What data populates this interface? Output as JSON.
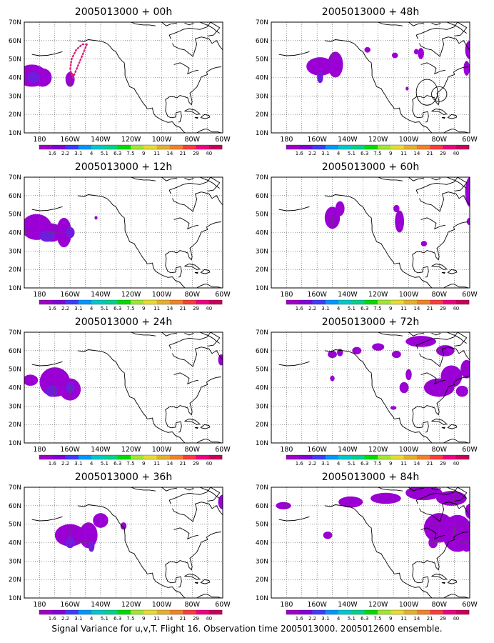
{
  "panels": [
    {
      "title": "2005013000 + 00h"
    },
    {
      "title": "2005013000 + 48h"
    },
    {
      "title": "2005013000 + 12h"
    },
    {
      "title": "2005013000 + 60h"
    },
    {
      "title": "2005013000 + 24h"
    },
    {
      "title": "2005013000 + 72h"
    },
    {
      "title": "2005013000 + 36h"
    },
    {
      "title": "2005013000 + 84h"
    }
  ],
  "map": {
    "lat_labels": [
      "70N",
      "60N",
      "50N",
      "40N",
      "30N",
      "20N",
      "10N"
    ],
    "lon_labels": [
      "180",
      "160W",
      "140W",
      "120W",
      "100W",
      "80W",
      "60W"
    ]
  },
  "colorbar": {
    "labels": [
      "1.6",
      "2.2",
      "3.1",
      "4",
      "5.1",
      "6.3",
      "7.5",
      "9",
      "11",
      "14",
      "21",
      "29",
      "40"
    ],
    "colors": [
      "#a000c8",
      "#8200dc",
      "#3c3cff",
      "#0096ff",
      "#00c8c8",
      "#00d28c",
      "#00dc00",
      "#a0e632",
      "#e6dc32",
      "#e6af2d",
      "#f08228",
      "#fa3c3c",
      "#f00082",
      "#c8005a"
    ]
  },
  "features": {
    "shade_main": "#9a00d4",
    "shade_core": "#6f1cdc",
    "flight_track": "#e0207a"
  },
  "caption": "Signal Variance for u,v,T. Flight 16. Observation time 2005013000. 2005012600 ensemble."
}
